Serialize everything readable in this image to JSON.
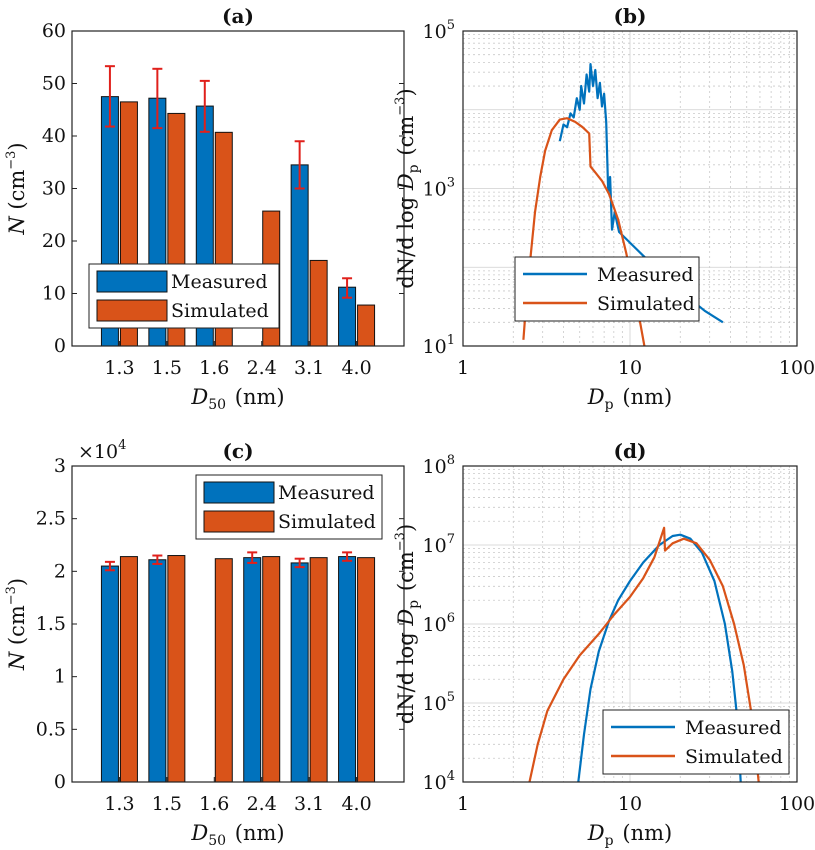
{
  "colors": {
    "measured": "#0072BD",
    "simulated": "#D95319",
    "error": "#E0201B",
    "grid": "#9a9a9a"
  },
  "chart_data": [
    {
      "panel": "(a)",
      "type": "bar",
      "title": "(a)",
      "categories": [
        "1.3",
        "1.5",
        "1.6",
        "2.4",
        "3.1",
        "4.0"
      ],
      "xlabel": {
        "base": "D",
        "sub": "50",
        "unit": " (nm)"
      },
      "ylabel": {
        "base": "N",
        "unit_pre": " (cm",
        "sup": "−3",
        "unit_post": ")"
      },
      "ylim": [
        0,
        60
      ],
      "yticks": [
        "0",
        "10",
        "20",
        "30",
        "40",
        "50",
        "60"
      ],
      "series": [
        {
          "name": "Measured",
          "values": [
            47.5,
            47.2,
            45.7,
            null,
            34.5,
            11.2
          ],
          "err_low": [
            41.8,
            41.5,
            40.8,
            null,
            30.0,
            9.2
          ],
          "err_high": [
            53.3,
            52.8,
            50.5,
            null,
            39.0,
            12.9
          ]
        },
        {
          "name": "Simulated",
          "values": [
            46.5,
            44.3,
            40.7,
            25.7,
            16.3,
            7.8
          ]
        }
      ],
      "legend": "bottom-left",
      "grid": false
    },
    {
      "panel": "(b)",
      "type": "line",
      "title": "(b)",
      "xscale": "log",
      "yscale": "log",
      "xlim": [
        1,
        100
      ],
      "ylim": [
        10,
        100000
      ],
      "xticks": [
        "1",
        "10",
        "100"
      ],
      "yticks": [
        {
          "base": "10",
          "exp": "1"
        },
        {
          "base": "10",
          "exp": "3"
        },
        {
          "base": "10",
          "exp": "5"
        }
      ],
      "xlabel": {
        "base": "D",
        "sub": "p",
        "unit": " (nm)"
      },
      "ylabel": {
        "base": "dN/d log D",
        "sub": "p",
        "unit_pre": " (cm",
        "sup": "−3",
        "unit_post": ")"
      },
      "series": [
        {
          "name": "Measured",
          "points": [
            [
              3.8,
              4000
            ],
            [
              4.0,
              6500
            ],
            [
              4.2,
              6000
            ],
            [
              4.4,
              9000
            ],
            [
              4.6,
              8000
            ],
            [
              4.8,
              14000
            ],
            [
              5.0,
              10000
            ],
            [
              5.1,
              20000
            ],
            [
              5.3,
              12000
            ],
            [
              5.5,
              28000
            ],
            [
              5.7,
              17000
            ],
            [
              5.8,
              38000
            ],
            [
              6.0,
              20000
            ],
            [
              6.2,
              32000
            ],
            [
              6.4,
              14000
            ],
            [
              6.6,
              22000
            ],
            [
              6.8,
              11000
            ],
            [
              7.0,
              16000
            ],
            [
              7.2,
              7000
            ],
            [
              7.4,
              900
            ],
            [
              7.6,
              1400
            ],
            [
              7.8,
              300
            ],
            [
              8.1,
              500
            ],
            [
              8.6,
              280
            ],
            [
              12,
              140
            ],
            [
              20,
              50
            ],
            [
              28,
              28
            ],
            [
              36,
              20
            ]
          ]
        },
        {
          "name": "Simulated",
          "points": [
            [
              2.3,
              12
            ],
            [
              2.4,
              40
            ],
            [
              2.55,
              150
            ],
            [
              2.7,
              500
            ],
            [
              2.9,
              1400
            ],
            [
              3.1,
              3000
            ],
            [
              3.4,
              5500
            ],
            [
              3.8,
              7500
            ],
            [
              4.2,
              7800
            ],
            [
              4.7,
              7000
            ],
            [
              5.2,
              6000
            ],
            [
              5.7,
              5000
            ],
            [
              5.8,
              1900
            ],
            [
              6.2,
              1600
            ],
            [
              6.8,
              1250
            ],
            [
              7.5,
              850
            ],
            [
              8.5,
              400
            ],
            [
              9.5,
              150
            ],
            [
              10.5,
              55
            ],
            [
              11.5,
              20
            ],
            [
              12.2,
              10
            ]
          ]
        }
      ],
      "legend": "lower-center",
      "grid": true
    },
    {
      "panel": "(c)",
      "type": "bar",
      "title": "(c)",
      "categories": [
        "1.3",
        "1.5",
        "1.6",
        "2.4",
        "3.1",
        "4.0"
      ],
      "xlabel": {
        "base": "D",
        "sub": "50",
        "unit": " (nm)"
      },
      "ylabel": {
        "base": "N",
        "unit_pre": " (cm",
        "sup": "−3",
        "unit_post": ")"
      },
      "y_multiplier": {
        "base": "×10",
        "exp": "4"
      },
      "ylim": [
        0,
        3
      ],
      "yticks": [
        "0",
        "0.5",
        "1",
        "1.5",
        "2",
        "2.5",
        "3"
      ],
      "series": [
        {
          "name": "Measured",
          "values": [
            2.05,
            2.11,
            null,
            2.13,
            2.08,
            2.14
          ],
          "err_low": [
            2.01,
            2.07,
            null,
            2.08,
            2.04,
            2.1
          ],
          "err_high": [
            2.09,
            2.15,
            null,
            2.18,
            2.12,
            2.18
          ]
        },
        {
          "name": "Simulated",
          "values": [
            2.14,
            2.15,
            2.12,
            2.14,
            2.13,
            2.13
          ]
        }
      ],
      "legend": "top-right",
      "grid": false
    },
    {
      "panel": "(d)",
      "type": "line",
      "title": "(d)",
      "xscale": "log",
      "yscale": "log",
      "xlim": [
        1,
        100
      ],
      "ylim": [
        10000,
        100000000
      ],
      "xticks": [
        "1",
        "10",
        "100"
      ],
      "yticks": [
        {
          "base": "10",
          "exp": "4"
        },
        {
          "base": "10",
          "exp": "5"
        },
        {
          "base": "10",
          "exp": "6"
        },
        {
          "base": "10",
          "exp": "7"
        },
        {
          "base": "10",
          "exp": "8"
        }
      ],
      "xlabel": {
        "base": "D",
        "sub": "p",
        "unit": " (nm)"
      },
      "ylabel": {
        "base": "dN/d log D",
        "sub": "p",
        "unit_pre": " (cm",
        "sup": "−3",
        "unit_post": ")"
      },
      "series": [
        {
          "name": "Measured",
          "points": [
            [
              4.9,
              10000
            ],
            [
              5.3,
              40000
            ],
            [
              5.8,
              150000
            ],
            [
              6.5,
              450000
            ],
            [
              7.5,
              1100000
            ],
            [
              8.5,
              2000000
            ],
            [
              10,
              3500000
            ],
            [
              12,
              6000000
            ],
            [
              15,
              10000000
            ],
            [
              18,
              13000000
            ],
            [
              20,
              13500000
            ],
            [
              23,
              12000000
            ],
            [
              27,
              8000000
            ],
            [
              32,
              3500000
            ],
            [
              37,
              1000000
            ],
            [
              41,
              250000
            ],
            [
              44,
              60000
            ],
            [
              46,
              10000
            ]
          ]
        },
        {
          "name": "Simulated",
          "points": [
            [
              2.5,
              10000
            ],
            [
              2.8,
              30000
            ],
            [
              3.2,
              80000
            ],
            [
              4,
              200000
            ],
            [
              5,
              400000
            ],
            [
              6.5,
              750000
            ],
            [
              8,
              1300000
            ],
            [
              10,
              2200000
            ],
            [
              12,
              3800000
            ],
            [
              14,
              7000000
            ],
            [
              16,
              16500000
            ],
            [
              16.2,
              8500000
            ],
            [
              18,
              10500000
            ],
            [
              21,
              12000000
            ],
            [
              25,
              10500000
            ],
            [
              30,
              6500000
            ],
            [
              36,
              3000000
            ],
            [
              42,
              1000000
            ],
            [
              48,
              300000
            ],
            [
              53,
              80000
            ],
            [
              57,
              20000
            ],
            [
              59,
              10000
            ]
          ]
        }
      ],
      "legend": "bottom-right",
      "grid": true
    }
  ]
}
